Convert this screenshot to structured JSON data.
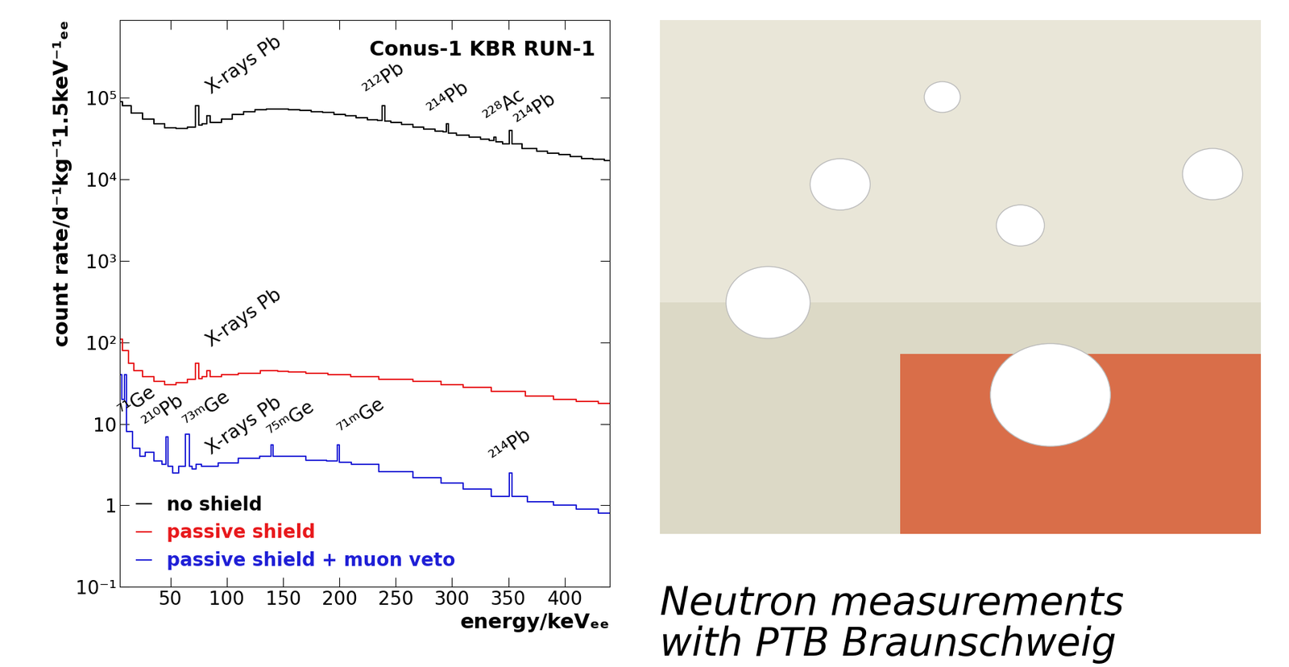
{
  "chart_data": {
    "type": "line",
    "title": "Conus-1 KBR RUN-1",
    "x_label": "energy/keVₑₑ",
    "y_label": "count rate/d⁻¹kg⁻¹1.5keV⁻¹ₑₑ",
    "log": "y",
    "legend": "lower left",
    "line_style": "steps",
    "xlim": [
      5,
      440
    ],
    "xticks": [
      50,
      100,
      150,
      200,
      250,
      300,
      350,
      400
    ],
    "ylim": [
      0.1,
      900000
    ],
    "yticks": [
      {
        "value": 0.1,
        "label": "10⁻¹"
      },
      1,
      10,
      {
        "value": 100,
        "label": "10²"
      },
      {
        "value": 1000,
        "label": "10³"
      },
      {
        "value": 10000,
        "label": "10⁴"
      },
      {
        "value": 100000,
        "label": "10⁵"
      }
    ],
    "series": [
      {
        "name": "no shield",
        "color": "#000000",
        "x": [
          5,
          10,
          20,
          30,
          40,
          50,
          60,
          70,
          74,
          76,
          80,
          84,
          86,
          90,
          100,
          110,
          120,
          130,
          140,
          150,
          160,
          170,
          180,
          190,
          200,
          210,
          220,
          230,
          237,
          239,
          241,
          250,
          260,
          270,
          280,
          290,
          294,
          296,
          298,
          310,
          320,
          330,
          336,
          338,
          340,
          350,
          352,
          354,
          370,
          380,
          390,
          400,
          410,
          420,
          430,
          440
        ],
        "values": [
          90000,
          80000,
          65000,
          55000,
          48000,
          43000,
          42000,
          44000,
          80000,
          46000,
          48000,
          60000,
          50000,
          50000,
          55000,
          62000,
          68000,
          71000,
          73000,
          73000,
          72000,
          70000,
          68000,
          66000,
          63000,
          60000,
          57000,
          54000,
          53000,
          80000,
          52000,
          50000,
          47000,
          44000,
          41000,
          39000,
          38000,
          48000,
          37000,
          35000,
          33000,
          31000,
          30000,
          33000,
          29000,
          27000,
          40000,
          27000,
          24000,
          22000,
          21000,
          20000,
          19000,
          18000,
          17500,
          17000
        ]
      },
      {
        "name": "passive shield",
        "color": "#e8191c",
        "x": [
          5,
          10,
          15,
          20,
          30,
          40,
          50,
          60,
          70,
          74,
          76,
          80,
          84,
          86,
          90,
          100,
          120,
          140,
          150,
          160,
          180,
          200,
          220,
          250,
          280,
          300,
          320,
          350,
          380,
          400,
          420,
          440
        ],
        "values": [
          110,
          80,
          55,
          45,
          38,
          33,
          30,
          32,
          35,
          55,
          36,
          38,
          45,
          38,
          38,
          40,
          42,
          45,
          44,
          43,
          42,
          40,
          38,
          35,
          33,
          30,
          28,
          25,
          22,
          20,
          19,
          18
        ]
      },
      {
        "name": "passive shield + muon veto",
        "color": "#1f1fd6",
        "x": [
          5,
          8,
          10,
          12,
          20,
          25,
          30,
          40,
          45,
          47,
          49,
          55,
          60,
          66,
          68,
          70,
          75,
          80,
          85,
          100,
          120,
          138,
          140,
          142,
          160,
          180,
          197,
          199,
          201,
          220,
          250,
          280,
          300,
          320,
          350,
          352,
          354,
          380,
          400,
          420,
          440
        ],
        "values": [
          40,
          20,
          40,
          8,
          5,
          4,
          4.5,
          3.5,
          3.2,
          7,
          3,
          2.5,
          3,
          7.5,
          3,
          2.8,
          3.2,
          3,
          3,
          3.3,
          3.8,
          4,
          5.5,
          4,
          4,
          3.6,
          3.5,
          5.5,
          3.4,
          3.2,
          2.6,
          2.2,
          1.9,
          1.6,
          1.3,
          2.5,
          1.3,
          1.1,
          1.0,
          0.9,
          0.8
        ]
      }
    ],
    "annotations": [
      {
        "text": "X-rays Pb",
        "x": 88,
        "y": 100000
      },
      {
        "text": "²¹²Pb",
        "x": 228,
        "y": 95000
      },
      {
        "text": "²¹⁴Pb",
        "x": 285,
        "y": 55000
      },
      {
        "text": "²²⁸Ac",
        "x": 335,
        "y": 45000
      },
      {
        "text": "²¹⁴Pb",
        "x": 362,
        "y": 40000
      },
      {
        "text": "X-rays Pb",
        "x": 88,
        "y": 80
      },
      {
        "text": "⁷¹Ge",
        "x": 10,
        "y": 11
      },
      {
        "text": "²¹⁰Pb",
        "x": 32,
        "y": 8
      },
      {
        "text": "⁷³ᵐGe",
        "x": 68,
        "y": 8
      },
      {
        "text": "X-rays Pb",
        "x": 88,
        "y": 3.8
      },
      {
        "text": "⁷⁵ᵐGe",
        "x": 143,
        "y": 6
      },
      {
        "text": "⁷¹ᵐGe",
        "x": 205,
        "y": 6.5
      },
      {
        "text": "²¹⁴Pb",
        "x": 340,
        "y": 3
      }
    ],
    "caption": "Neutron measurements\nwith PTB Braunschweig"
  }
}
